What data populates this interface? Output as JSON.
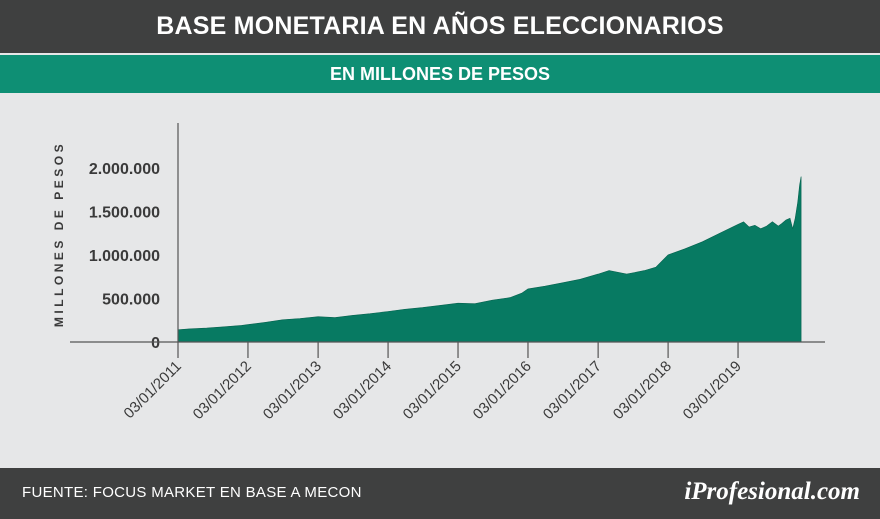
{
  "header": {
    "title": "BASE MONETARIA EN AÑOS ELECCIONARIOS",
    "subtitle": "EN MILLONES DE PESOS"
  },
  "footer": {
    "source": "FUENTE: FOCUS MARKET EN BASE A MECON",
    "logo_text": "iProfesional.com"
  },
  "colors": {
    "title_bar": "#3f4040",
    "subtitle_bar": "#0e8f74",
    "area_fill": "#077a62",
    "background": "#e6e7e8"
  },
  "chart_data": {
    "type": "area",
    "title": "BASE MONETARIA EN AÑOS ELECCIONARIOS",
    "subtitle": "EN MILLONES DE PESOS",
    "ylabel": "MILLONES DE PESOS",
    "xlabel": "",
    "ylim": [
      0,
      2250000
    ],
    "yticks": [
      0,
      500000,
      1000000,
      1500000,
      2000000
    ],
    "ytick_labels": [
      "0",
      "500.000",
      "1.000.000",
      "1.500.000",
      "2.000.000"
    ],
    "xlim": [
      "2011-01-03",
      "2020-01-03"
    ],
    "xticks": [
      "2011-01-03",
      "2012-01-03",
      "2013-01-03",
      "2014-01-03",
      "2015-01-03",
      "2016-01-03",
      "2017-01-03",
      "2018-01-03",
      "2019-01-03"
    ],
    "xtick_labels": [
      "03/01/2011",
      "03/01/2012",
      "03/01/2013",
      "03/01/2014",
      "03/01/2015",
      "03/01/2016",
      "03/01/2017",
      "03/01/2018",
      "03/01/2019"
    ],
    "grid": false,
    "legend": "none",
    "series": [
      {
        "x": [
          "2011-01-03",
          "2011-03-01",
          "2011-06-01",
          "2011-09-01",
          "2011-12-01",
          "2012-01-03",
          "2012-04-01",
          "2012-07-01",
          "2012-10-01",
          "2013-01-03",
          "2013-04-01",
          "2013-07-01",
          "2013-10-01",
          "2014-01-03",
          "2014-04-01",
          "2014-07-01",
          "2014-10-01",
          "2015-01-03",
          "2015-04-01",
          "2015-07-01",
          "2015-10-01",
          "2015-12-01",
          "2016-01-03",
          "2016-04-01",
          "2016-07-01",
          "2016-10-01",
          "2017-01-03",
          "2017-03-01",
          "2017-06-01",
          "2017-09-01",
          "2017-11-01",
          "2018-01-03",
          "2018-04-01",
          "2018-07-01",
          "2018-10-01",
          "2019-01-03",
          "2019-02-01",
          "2019-03-01",
          "2019-04-01",
          "2019-05-01",
          "2019-06-01",
          "2019-07-01",
          "2019-08-01",
          "2019-08-20",
          "2019-09-10",
          "2019-10-01",
          "2019-10-15",
          "2019-10-28",
          "2019-11-10",
          "2019-11-20",
          "2019-11-28"
        ],
        "y": [
          140000,
          150000,
          160000,
          175000,
          190000,
          200000,
          225000,
          255000,
          270000,
          290000,
          280000,
          305000,
          325000,
          350000,
          375000,
          395000,
          420000,
          445000,
          440000,
          480000,
          510000,
          560000,
          610000,
          640000,
          680000,
          720000,
          780000,
          820000,
          780000,
          820000,
          860000,
          1000000,
          1070000,
          1150000,
          1250000,
          1350000,
          1380000,
          1320000,
          1340000,
          1300000,
          1330000,
          1380000,
          1330000,
          1360000,
          1400000,
          1420000,
          1300000,
          1420000,
          1600000,
          1800000,
          1900000
        ]
      }
    ]
  }
}
